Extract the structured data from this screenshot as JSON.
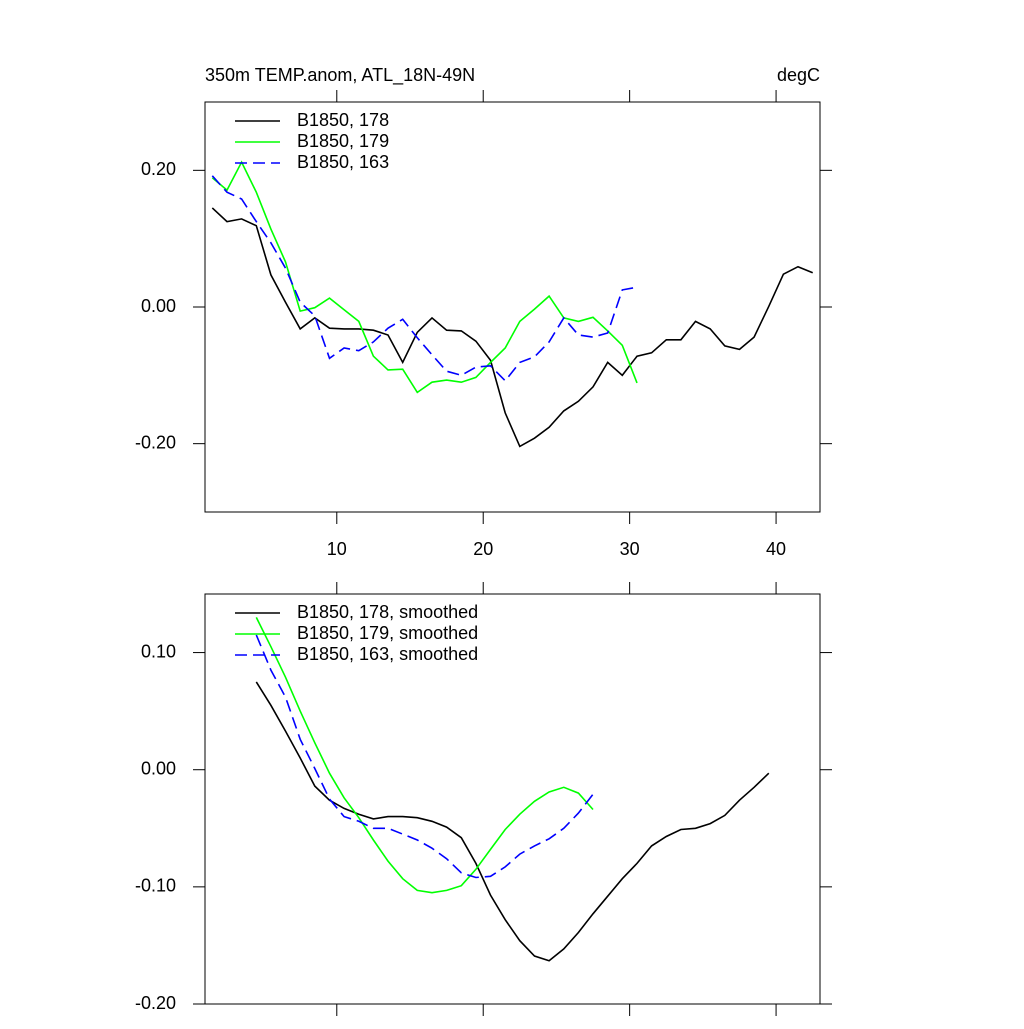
{
  "chart_data": [
    {
      "type": "line",
      "title": "350m TEMP.anom, ATL_18N-49N",
      "units": "degC",
      "x": [
        1.5,
        2.5,
        3.5,
        4.5,
        5.5,
        6.5,
        7.5,
        8.5,
        9.5,
        10.5,
        11.5,
        12.5,
        13.5,
        14.5,
        15.5,
        16.5,
        17.5,
        18.5,
        19.5,
        20.5,
        21.5,
        22.5,
        23.5,
        24.5,
        25.5,
        26.5,
        27.5,
        28.5,
        29.5,
        30.5,
        31.5,
        32.5,
        33.5,
        34.5,
        35.5,
        36.5,
        37.5,
        38.5,
        39.5,
        40.5,
        41.5,
        42.5
      ],
      "series": [
        {
          "name": "B1850, 178",
          "color": "#000000",
          "dash": false,
          "values": [
            0.145,
            0.125,
            0.129,
            0.119,
            0.047,
            0.007,
            -0.032,
            -0.016,
            -0.031,
            -0.032,
            -0.032,
            -0.034,
            -0.041,
            -0.081,
            -0.037,
            -0.016,
            -0.034,
            -0.035,
            -0.05,
            -0.078,
            -0.155,
            -0.204,
            -0.192,
            -0.176,
            -0.152,
            -0.138,
            -0.117,
            -0.081,
            -0.1,
            -0.072,
            -0.067,
            -0.048,
            -0.048,
            -0.021,
            -0.032,
            -0.057,
            -0.062,
            -0.044,
            0.001,
            0.048,
            0.059,
            0.05
          ]
        },
        {
          "name": "B1850, 179",
          "color": "#00ff00",
          "dash": false,
          "values": [
            0.189,
            0.171,
            0.212,
            0.168,
            0.114,
            0.066,
            -0.006,
            -0.001,
            0.013,
            -0.004,
            -0.021,
            -0.072,
            -0.092,
            -0.091,
            -0.125,
            -0.11,
            -0.107,
            -0.11,
            -0.103,
            -0.081,
            -0.06,
            -0.021,
            -0.003,
            0.016,
            -0.016,
            -0.021,
            -0.015,
            -0.035,
            -0.056,
            -0.111,
            null,
            null,
            null,
            null,
            null,
            null,
            null,
            null,
            null,
            null,
            null,
            null
          ]
        },
        {
          "name": "B1850, 163",
          "color": "#0000ff",
          "dash": true,
          "values": [
            0.192,
            0.168,
            0.158,
            0.125,
            0.094,
            0.057,
            0.007,
            -0.013,
            -0.075,
            -0.06,
            -0.064,
            -0.051,
            -0.031,
            -0.018,
            -0.045,
            -0.07,
            -0.094,
            -0.1,
            -0.088,
            -0.086,
            -0.108,
            -0.081,
            -0.073,
            -0.051,
            -0.016,
            -0.041,
            -0.044,
            -0.038,
            0.025,
            0.029,
            null,
            null,
            null,
            null,
            null,
            null,
            null,
            null,
            null,
            null,
            null,
            null
          ]
        }
      ],
      "xlim": [
        1,
        43
      ],
      "xticks": [
        10,
        20,
        30,
        40
      ],
      "ylim": [
        -0.3,
        0.3
      ],
      "yticks": [
        {
          "value": -0.2,
          "label": "-0.20"
        },
        {
          "value": 0,
          "label": "0.00"
        },
        {
          "value": 0.2,
          "label": "0.20"
        }
      ]
    },
    {
      "type": "line",
      "x": [
        4.5,
        5.5,
        6.5,
        7.5,
        8.5,
        9.5,
        10.5,
        11.5,
        12.5,
        13.5,
        14.5,
        15.5,
        16.5,
        17.5,
        18.5,
        19.5,
        20.5,
        21.5,
        22.5,
        23.5,
        24.5,
        25.5,
        26.5,
        27.5,
        28.5,
        29.5,
        30.5,
        31.5,
        32.5,
        33.5,
        34.5,
        35.5,
        36.5,
        37.5,
        38.5,
        39.5
      ],
      "series": [
        {
          "name": "B1850, 178, smoothed",
          "color": "#000000",
          "dash": false,
          "values": [
            0.075,
            0.055,
            0.033,
            0.01,
            -0.014,
            -0.026,
            -0.033,
            -0.038,
            -0.042,
            -0.04,
            -0.04,
            -0.041,
            -0.044,
            -0.049,
            -0.058,
            -0.08,
            -0.107,
            -0.128,
            -0.146,
            -0.159,
            -0.163,
            -0.153,
            -0.139,
            -0.123,
            -0.108,
            -0.093,
            -0.08,
            -0.065,
            -0.057,
            -0.051,
            -0.05,
            -0.046,
            -0.039,
            -0.026,
            -0.015,
            -0.003
          ]
        },
        {
          "name": "B1850, 179, smoothed",
          "color": "#00ff00",
          "dash": false,
          "values": [
            0.13,
            0.105,
            0.079,
            0.05,
            0.023,
            -0.003,
            -0.024,
            -0.041,
            -0.06,
            -0.078,
            -0.093,
            -0.103,
            -0.105,
            -0.103,
            -0.099,
            -0.085,
            -0.068,
            -0.051,
            -0.038,
            -0.027,
            -0.019,
            -0.015,
            -0.02,
            -0.034,
            null,
            null,
            null,
            null,
            null,
            null,
            null,
            null,
            null,
            null,
            null,
            null
          ]
        },
        {
          "name": "B1850, 163, smoothed",
          "color": "#0000ff",
          "dash": true,
          "values": [
            0.115,
            0.085,
            0.062,
            0.026,
            0.001,
            -0.025,
            -0.04,
            -0.044,
            -0.05,
            -0.05,
            -0.055,
            -0.06,
            -0.067,
            -0.076,
            -0.088,
            -0.092,
            -0.091,
            -0.083,
            -0.072,
            -0.065,
            -0.059,
            -0.05,
            -0.037,
            -0.021,
            null,
            null,
            null,
            null,
            null,
            null,
            null,
            null,
            null,
            null,
            null,
            null
          ]
        }
      ],
      "xlim": [
        1,
        43
      ],
      "xticks": [
        10,
        20,
        30,
        40
      ],
      "ylim": [
        -0.2,
        0.15
      ],
      "yticks": [
        {
          "value": -0.2,
          "label": "-0.20"
        },
        {
          "value": -0.1,
          "label": "-0.10"
        },
        {
          "value": 0,
          "label": "0.00"
        },
        {
          "value": 0.1,
          "label": "0.10"
        }
      ]
    }
  ]
}
